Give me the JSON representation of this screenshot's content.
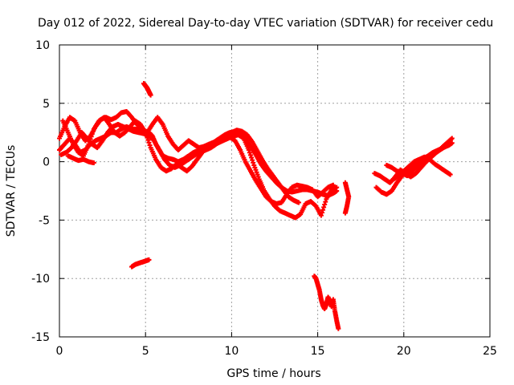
{
  "chart_data": {
    "type": "scatter",
    "title": "Day 012 of 2022, Sidereal Day-to-day VTEC variation (SDTVAR) for receiver cedu",
    "xlabel": "GPS time / hours",
    "ylabel": "SDTVAR / TECUs",
    "xlim": [
      0,
      25
    ],
    "ylim": [
      -15,
      10
    ],
    "xticks": [
      0,
      5,
      10,
      15,
      20,
      25
    ],
    "yticks": [
      -15,
      -10,
      -5,
      0,
      5,
      10
    ],
    "xtick_labels": [
      "0",
      "5",
      "10",
      "15",
      "20",
      "25"
    ],
    "ytick_labels": [
      "-15",
      "-10",
      "-5",
      "0",
      "5",
      "10"
    ],
    "grid": true,
    "marker": "+",
    "color": "#ff0000",
    "series": [
      {
        "name": "track-1",
        "x": [
          0.0,
          0.3,
          0.6,
          0.9,
          1.2,
          1.5,
          1.8,
          2.1,
          2.4,
          2.7,
          3.0,
          3.3,
          3.6,
          3.9,
          4.2,
          4.5,
          4.8,
          5.0,
          5.2,
          5.4,
          5.6,
          5.8,
          6.0,
          6.3,
          6.6,
          6.9,
          7.2,
          7.5,
          7.8,
          8.1,
          8.4,
          8.7,
          9.0,
          9.3,
          9.6,
          9.9,
          10.2,
          10.5,
          10.8,
          11.1,
          11.4,
          11.7,
          12.0,
          12.3,
          12.6,
          12.9,
          13.2,
          13.5,
          13.8,
          14.1,
          14.4,
          14.7,
          15.0,
          15.3,
          15.6,
          15.9,
          16.1
        ],
        "y": [
          1.0,
          1.5,
          2.0,
          1.5,
          0.8,
          1.0,
          1.5,
          1.8,
          2.0,
          2.2,
          2.5,
          2.5,
          2.8,
          3.0,
          2.8,
          2.8,
          2.8,
          2.6,
          2.5,
          2.2,
          1.5,
          1.0,
          0.5,
          0.3,
          0.2,
          0.0,
          0.2,
          0.5,
          0.8,
          1.0,
          1.3,
          1.5,
          1.7,
          2.0,
          2.3,
          2.5,
          2.6,
          2.4,
          2.0,
          1.3,
          0.6,
          -0.2,
          -0.8,
          -1.3,
          -1.8,
          -2.2,
          -2.5,
          -2.6,
          -2.5,
          -2.4,
          -2.4,
          -2.5,
          -2.6,
          -2.8,
          -2.9,
          -2.7,
          -2.5
        ]
      },
      {
        "name": "track-2",
        "x": [
          0.2,
          0.5,
          0.8,
          1.1,
          1.4,
          1.7,
          2.0,
          2.3,
          2.6,
          2.9,
          3.2,
          3.5,
          3.8,
          4.1,
          4.4,
          4.7,
          5.0,
          5.3,
          5.6,
          5.9,
          6.2,
          6.5,
          6.8,
          7.1,
          7.4,
          7.7,
          8.0,
          8.3,
          8.6,
          8.9,
          9.2,
          9.5,
          9.8,
          10.1,
          10.4,
          10.7,
          11.0,
          11.3,
          11.6,
          11.9,
          12.2,
          12.5,
          12.8,
          13.1,
          13.4,
          13.7,
          14.0,
          14.3,
          14.6,
          14.9,
          15.2,
          15.5,
          15.8,
          16.1
        ],
        "y": [
          3.5,
          2.5,
          1.5,
          0.8,
          0.5,
          1.5,
          2.8,
          3.5,
          3.8,
          3.2,
          2.5,
          2.2,
          2.5,
          3.0,
          3.5,
          3.2,
          2.5,
          1.2,
          0.2,
          -0.5,
          -0.8,
          -0.6,
          -0.2,
          -0.5,
          -0.8,
          -0.4,
          0.2,
          0.8,
          1.2,
          1.4,
          1.6,
          1.8,
          2.0,
          2.2,
          2.3,
          2.0,
          1.0,
          -0.3,
          -1.5,
          -2.5,
          -3.2,
          -3.8,
          -4.2,
          -4.4,
          -4.6,
          -4.8,
          -4.5,
          -3.6,
          -3.4,
          -3.8,
          -4.6,
          -3.2,
          -2.4,
          -2.2
        ]
      },
      {
        "name": "track-3",
        "x": [
          0.0,
          0.3,
          0.6,
          0.9,
          1.2,
          1.5,
          1.8,
          2.1,
          2.4,
          2.7,
          3.0,
          3.3,
          3.6,
          3.9,
          4.2,
          4.5,
          4.8,
          5.1,
          5.4,
          5.7,
          6.0,
          6.3,
          6.6,
          6.9,
          7.2,
          7.5,
          7.8,
          8.1,
          8.4,
          8.7,
          9.0,
          9.3,
          9.6,
          9.9,
          10.2,
          10.5,
          10.8,
          11.1,
          11.4,
          11.7,
          12.0,
          12.3,
          12.6,
          12.9,
          13.2,
          13.5,
          13.8,
          14.1,
          14.4,
          14.7,
          15.0,
          15.3,
          15.6,
          15.9
        ],
        "y": [
          2.0,
          3.0,
          3.8,
          3.5,
          2.5,
          1.8,
          2.2,
          3.0,
          3.6,
          3.8,
          3.6,
          3.8,
          4.2,
          4.3,
          3.8,
          3.2,
          2.8,
          2.5,
          3.2,
          3.8,
          3.2,
          2.2,
          1.5,
          1.0,
          1.4,
          1.8,
          1.5,
          1.2,
          1.3,
          1.5,
          1.6,
          1.8,
          2.0,
          2.1,
          1.8,
          1.0,
          0.0,
          -0.8,
          -1.6,
          -2.3,
          -3.0,
          -3.4,
          -3.6,
          -3.5,
          -2.8,
          -2.2,
          -2.0,
          -2.1,
          -2.2,
          -2.4,
          -3.0,
          -2.6,
          -2.2,
          -2.0
        ]
      },
      {
        "name": "track-4",
        "x": [
          0.1,
          0.4,
          0.7,
          1.0,
          1.3,
          1.6,
          1.9,
          2.2,
          2.5,
          2.8,
          3.1,
          3.4,
          3.7,
          4.0,
          4.3,
          4.6,
          4.9,
          5.2,
          5.5,
          5.8,
          6.1,
          6.4,
          6.7,
          7.0,
          7.3,
          7.6,
          7.9,
          8.2,
          8.5,
          8.8,
          9.1,
          9.4,
          9.7,
          10.0,
          10.3,
          10.6,
          10.9,
          11.2,
          11.5,
          11.8,
          12.1,
          12.4,
          12.7,
          13.0,
          13.3,
          13.6,
          13.9
        ],
        "y": [
          0.6,
          0.8,
          1.2,
          1.8,
          2.5,
          2.0,
          1.5,
          1.2,
          1.8,
          2.5,
          3.0,
          3.2,
          3.0,
          2.8,
          2.6,
          2.5,
          2.4,
          2.2,
          1.8,
          1.0,
          0.2,
          -0.3,
          -0.5,
          -0.3,
          0.0,
          0.3,
          0.6,
          0.8,
          1.0,
          1.2,
          1.5,
          1.8,
          2.2,
          2.5,
          2.7,
          2.6,
          2.3,
          1.7,
          0.9,
          0.1,
          -0.6,
          -1.2,
          -1.8,
          -2.4,
          -3.0,
          -3.3,
          -3.5
        ]
      },
      {
        "name": "track-5",
        "x": [
          0.5,
          0.8,
          1.1,
          1.4,
          1.7,
          2.0
        ],
        "y": [
          0.5,
          0.3,
          0.1,
          0.2,
          0.0,
          -0.1
        ]
      },
      {
        "name": "track-6",
        "x": [
          4.2,
          4.4,
          4.6,
          4.8,
          5.0,
          5.2
        ],
        "y": [
          -9.0,
          -8.8,
          -8.7,
          -8.6,
          -8.5,
          -8.4
        ]
      },
      {
        "name": "track-7",
        "x": [
          4.9,
          5.0,
          5.1,
          5.2,
          5.3
        ],
        "y": [
          6.7,
          6.5,
          6.3,
          6.0,
          5.7
        ]
      },
      {
        "name": "track-8",
        "x": [
          14.8,
          14.9,
          15.0,
          15.1,
          15.2,
          15.3,
          15.4,
          15.5,
          15.6,
          15.7,
          15.8,
          15.9,
          16.0,
          16.1,
          16.2
        ],
        "y": [
          -9.8,
          -10.0,
          -10.5,
          -11.0,
          -11.8,
          -12.3,
          -12.6,
          -12.2,
          -11.6,
          -11.9,
          -12.4,
          -11.8,
          -12.8,
          -13.6,
          -14.3
        ]
      },
      {
        "name": "track-9",
        "x": [
          16.6,
          16.7,
          16.8,
          16.7,
          16.6
        ],
        "y": [
          -1.8,
          -2.4,
          -3.0,
          -3.8,
          -4.4
        ]
      },
      {
        "name": "track-10",
        "x": [
          18.4,
          18.7,
          19.0,
          19.3,
          19.6,
          19.9,
          20.2,
          20.5,
          20.8,
          21.1,
          21.4,
          21.7,
          22.0,
          22.3,
          22.6,
          22.8
        ],
        "y": [
          -2.2,
          -2.6,
          -2.8,
          -2.5,
          -1.8,
          -1.2,
          -0.8,
          -0.5,
          -0.2,
          0.2,
          0.5,
          0.8,
          1.0,
          1.2,
          1.4,
          1.6
        ]
      },
      {
        "name": "track-11",
        "x": [
          18.3,
          18.6,
          18.9,
          19.2,
          19.5,
          19.8,
          20.1,
          20.4,
          20.7,
          21.0,
          21.3,
          21.6,
          21.9,
          22.2,
          22.5,
          22.8
        ],
        "y": [
          -1.0,
          -1.2,
          -1.5,
          -1.8,
          -1.3,
          -0.7,
          -1.0,
          -1.3,
          -1.0,
          -0.5,
          0.0,
          0.4,
          0.8,
          1.2,
          1.6,
          2.0
        ]
      },
      {
        "name": "track-12",
        "x": [
          19.4,
          19.7,
          20.0,
          20.3,
          20.6,
          20.9,
          21.2,
          21.5,
          21.8,
          22.1,
          22.4,
          22.7
        ],
        "y": [
          -1.5,
          -1.2,
          -0.8,
          -0.4,
          0.0,
          0.2,
          0.4,
          0.2,
          -0.2,
          -0.5,
          -0.8,
          -1.1
        ]
      },
      {
        "name": "track-13",
        "x": [
          19.0,
          19.3,
          19.6,
          19.9,
          20.2,
          20.5,
          20.8,
          21.1,
          21.4,
          21.7,
          22.0,
          22.3,
          22.6
        ],
        "y": [
          -0.3,
          -0.5,
          -0.8,
          -1.0,
          -1.2,
          -0.8,
          -0.4,
          0.0,
          0.3,
          0.6,
          0.9,
          1.2,
          1.5
        ]
      }
    ]
  }
}
